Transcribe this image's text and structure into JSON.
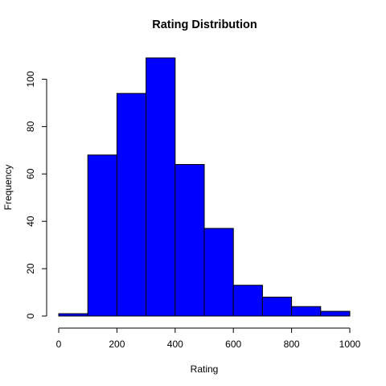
{
  "chart_data": {
    "type": "bar",
    "title": "Rating Distribution",
    "xlabel": "Rating",
    "ylabel": "Frequency",
    "bin_edges": [
      0,
      100,
      200,
      300,
      400,
      500,
      600,
      700,
      800,
      900,
      1000
    ],
    "values": [
      1,
      68,
      94,
      109,
      64,
      37,
      13,
      8,
      4,
      2
    ],
    "xlim": [
      0,
      1000
    ],
    "ylim": [
      0,
      109
    ],
    "x_ticks": [
      0,
      200,
      400,
      600,
      800,
      1000
    ],
    "y_ticks": [
      0,
      20,
      40,
      60,
      80,
      100
    ],
    "bar_color": "#0000ff",
    "bar_border_color": "#000000",
    "grid": false
  }
}
